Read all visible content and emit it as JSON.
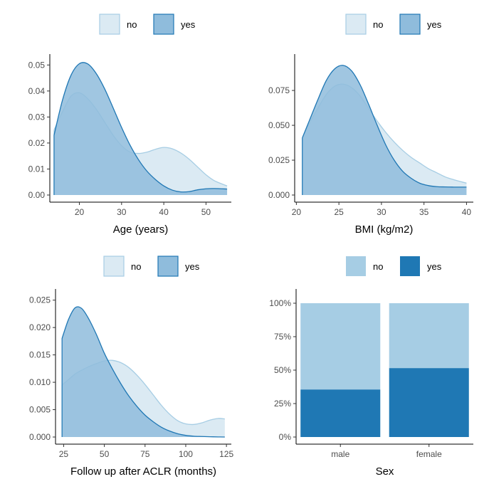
{
  "colors": {
    "no_fill": "#dbeaf3",
    "no_line": "#a6cde4",
    "yes_fill": "#8fbcdc",
    "yes_line": "#1f77b4",
    "bar_no": "#a6cde4",
    "bar_yes": "#1f78b4"
  },
  "chart_data": [
    {
      "type": "area",
      "xlabel": "Age (years)",
      "ylabel": "",
      "xlim": [
        13,
        56
      ],
      "ylim": [
        0,
        0.052
      ],
      "xticks": [
        20,
        30,
        40,
        50
      ],
      "yticks": [
        0.0,
        0.01,
        0.02,
        0.03,
        0.04,
        0.05
      ],
      "ytick_labels": [
        "0.00",
        "0.01",
        "0.02",
        "0.03",
        "0.04",
        "0.05"
      ],
      "legend": {
        "position": "top",
        "items": [
          "no",
          "yes"
        ]
      },
      "series": [
        {
          "name": "no",
          "x": [
            14,
            16,
            18,
            20,
            22,
            24,
            26,
            28,
            30,
            32,
            34,
            36,
            38,
            40,
            42,
            44,
            46,
            48,
            50,
            52,
            55
          ],
          "values": [
            0.025,
            0.032,
            0.038,
            0.0393,
            0.037,
            0.033,
            0.028,
            0.023,
            0.019,
            0.0165,
            0.016,
            0.0165,
            0.0176,
            0.0183,
            0.0178,
            0.0162,
            0.0138,
            0.0108,
            0.0078,
            0.0055,
            0.0035
          ]
        },
        {
          "name": "yes",
          "x": [
            14,
            16,
            18,
            20,
            22,
            24,
            26,
            28,
            30,
            32,
            34,
            36,
            38,
            40,
            42,
            44,
            46,
            48,
            50,
            52,
            55
          ],
          "values": [
            0.023,
            0.0365,
            0.046,
            0.0505,
            0.0504,
            0.0467,
            0.0408,
            0.0335,
            0.026,
            0.0192,
            0.0136,
            0.0092,
            0.006,
            0.0035,
            0.0019,
            0.0012,
            0.0013,
            0.002,
            0.0024,
            0.0025,
            0.0023
          ]
        }
      ]
    },
    {
      "type": "area",
      "xlabel": "BMI (kg/m2)",
      "ylabel": "",
      "xlim": [
        19.8,
        40.8
      ],
      "ylim": [
        0,
        0.097
      ],
      "xticks": [
        20,
        25,
        30,
        35,
        40
      ],
      "yticks": [
        0,
        0.025,
        0.05,
        0.075
      ],
      "ytick_labels": [
        "0.000",
        "0.025",
        "0.050",
        "0.075"
      ],
      "legend": {
        "position": "top",
        "items": [
          "no",
          "yes"
        ]
      },
      "series": [
        {
          "name": "no",
          "x": [
            20.7,
            21.5,
            22.5,
            23.5,
            24.5,
            25.5,
            26.5,
            27.5,
            28.5,
            29.5,
            30.5,
            31.5,
            32.5,
            33.5,
            34.5,
            35.5,
            36.5,
            37.5,
            38.5,
            40
          ],
          "values": [
            0.041,
            0.051,
            0.062,
            0.072,
            0.078,
            0.0795,
            0.077,
            0.071,
            0.062,
            0.053,
            0.045,
            0.038,
            0.032,
            0.027,
            0.023,
            0.019,
            0.016,
            0.013,
            0.011,
            0.0085
          ]
        },
        {
          "name": "yes",
          "x": [
            20.7,
            21.5,
            22.5,
            23.5,
            24.5,
            25.5,
            26.5,
            27.5,
            28.5,
            29.5,
            30.5,
            31.5,
            32.5,
            33.5,
            34.5,
            35.5,
            36.5,
            37.5,
            38.5,
            40
          ],
          "values": [
            0.041,
            0.053,
            0.068,
            0.082,
            0.0905,
            0.093,
            0.089,
            0.079,
            0.065,
            0.05,
            0.036,
            0.025,
            0.017,
            0.012,
            0.0085,
            0.0068,
            0.006,
            0.0058,
            0.0057,
            0.0057
          ]
        }
      ]
    },
    {
      "type": "area",
      "xlabel": "Follow up after ACLR (months)",
      "ylabel": "",
      "xlim": [
        20,
        128
      ],
      "ylim": [
        0,
        0.026
      ],
      "xticks": [
        25,
        50,
        75,
        100,
        125
      ],
      "yticks": [
        0,
        0.005,
        0.01,
        0.015,
        0.02,
        0.025
      ],
      "ytick_labels": [
        "0.000",
        "0.005",
        "0.010",
        "0.015",
        "0.020",
        "0.025"
      ],
      "legend": {
        "position": "top",
        "items": [
          "no",
          "yes"
        ]
      },
      "series": [
        {
          "name": "no",
          "x": [
            24,
            28,
            32,
            36,
            40,
            45,
            50,
            55,
            60,
            65,
            70,
            75,
            80,
            85,
            90,
            95,
            100,
            105,
            110,
            115,
            120,
            124
          ],
          "values": [
            0.0095,
            0.0105,
            0.0115,
            0.0122,
            0.0128,
            0.0134,
            0.0139,
            0.014,
            0.0136,
            0.0127,
            0.0113,
            0.0096,
            0.0077,
            0.0058,
            0.0042,
            0.003,
            0.0024,
            0.0023,
            0.0026,
            0.0031,
            0.0034,
            0.0033
          ]
        },
        {
          "name": "yes",
          "x": [
            24,
            28,
            32,
            36,
            40,
            45,
            50,
            55,
            60,
            65,
            70,
            75,
            80,
            85,
            90,
            95,
            100,
            105,
            110,
            115,
            120,
            124
          ],
          "values": [
            0.018,
            0.0215,
            0.0236,
            0.0235,
            0.0218,
            0.0188,
            0.0153,
            0.0124,
            0.0098,
            0.0075,
            0.0056,
            0.004,
            0.0028,
            0.0018,
            0.0011,
            0.0006,
            0.0003,
            0.00015,
            0.0001,
            5e-05,
            2e-05,
            0.0
          ]
        }
      ]
    },
    {
      "type": "bar",
      "stacked": "percent",
      "xlabel": "Sex",
      "ylabel": "",
      "categories": [
        "male",
        "female"
      ],
      "ylim": [
        0,
        1
      ],
      "yticks": [
        0,
        0.25,
        0.5,
        0.75,
        1
      ],
      "ytick_labels": [
        "0%",
        "25%",
        "50%",
        "75%",
        "100%"
      ],
      "legend": {
        "position": "top",
        "items": [
          "no",
          "yes"
        ]
      },
      "series": [
        {
          "name": "yes",
          "values": [
            0.355,
            0.515
          ]
        },
        {
          "name": "no",
          "values": [
            0.645,
            0.485
          ]
        }
      ]
    }
  ]
}
